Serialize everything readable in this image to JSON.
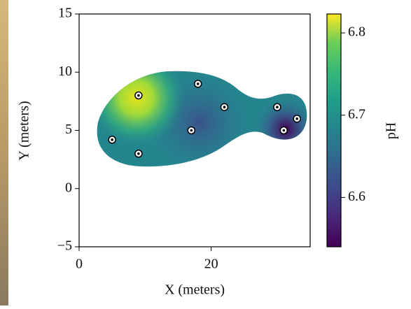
{
  "chart_data": {
    "type": "scatter",
    "x_label": "X (meters)",
    "y_label": "Y (meters)",
    "x": [
      5,
      9,
      9,
      17,
      18,
      22,
      30,
      31,
      33
    ],
    "y": [
      4.2,
      3,
      8,
      5,
      9,
      7,
      7,
      5,
      6
    ],
    "xlim": [
      0,
      35
    ],
    "ylim": [
      -5,
      15
    ],
    "xticks": [
      0,
      20
    ],
    "yticks": [
      {
        "value": -5,
        "label": "−5"
      },
      0,
      5,
      10,
      15
    ],
    "point_color": "#ffffff",
    "colorbar": {
      "label": "pH",
      "clim": [
        6.54,
        6.823
      ],
      "ticks": [
        6.6,
        6.7,
        6.8
      ],
      "colormap": "viridis"
    }
  }
}
